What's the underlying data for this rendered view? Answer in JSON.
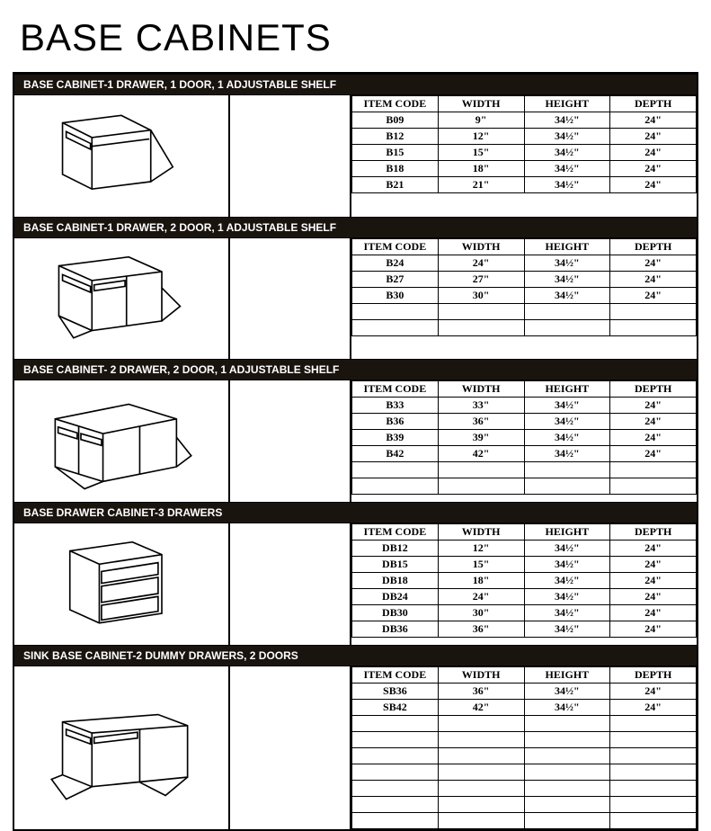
{
  "page_title": "BASE CABINETS",
  "colors": {
    "header_bg": "#1a140f",
    "header_fg": "#ffffff",
    "border": "#000000",
    "page_bg": "#ffffff"
  },
  "columns": [
    "ITEM CODE",
    "WIDTH",
    "HEIGHT",
    "DEPTH"
  ],
  "sections": [
    {
      "title": "BASE CABINET-1 DRAWER, 1 DOOR, 1 ADJUSTABLE SHELF",
      "min_rows": 5,
      "rows": [
        {
          "code": "B09",
          "width": "9\"",
          "height": "34½\"",
          "depth": "24\""
        },
        {
          "code": "B12",
          "width": "12\"",
          "height": "34½\"",
          "depth": "24\""
        },
        {
          "code": "B15",
          "width": "15\"",
          "height": "34½\"",
          "depth": "24\""
        },
        {
          "code": "B18",
          "width": "18\"",
          "height": "34½\"",
          "depth": "24\""
        },
        {
          "code": "B21",
          "width": "21\"",
          "height": "34½\"",
          "depth": "24\""
        }
      ]
    },
    {
      "title": "BASE CABINET-1 DRAWER, 2 DOOR, 1 ADJUSTABLE SHELF",
      "min_rows": 5,
      "rows": [
        {
          "code": "B24",
          "width": "24\"",
          "height": "34½\"",
          "depth": "24\""
        },
        {
          "code": "B27",
          "width": "27\"",
          "height": "34½\"",
          "depth": "24\""
        },
        {
          "code": "B30",
          "width": "30\"",
          "height": "34½\"",
          "depth": "24\""
        }
      ]
    },
    {
      "title": "BASE CABINET- 2 DRAWER, 2 DOOR, 1 ADJUSTABLE SHELF",
      "min_rows": 6,
      "rows": [
        {
          "code": "B33",
          "width": "33\"",
          "height": "34½\"",
          "depth": "24\""
        },
        {
          "code": "B36",
          "width": "36\"",
          "height": "34½\"",
          "depth": "24\""
        },
        {
          "code": "B39",
          "width": "39\"",
          "height": "34½\"",
          "depth": "24\""
        },
        {
          "code": "B42",
          "width": "42\"",
          "height": "34½\"",
          "depth": "24\""
        }
      ]
    },
    {
      "title": "BASE DRAWER CABINET-3 DRAWERS",
      "min_rows": 6,
      "rows": [
        {
          "code": "DB12",
          "width": "12\"",
          "height": "34½\"",
          "depth": "24\""
        },
        {
          "code": "DB15",
          "width": "15\"",
          "height": "34½\"",
          "depth": "24\""
        },
        {
          "code": "DB18",
          "width": "18\"",
          "height": "34½\"",
          "depth": "24\""
        },
        {
          "code": "DB24",
          "width": "24\"",
          "height": "34½\"",
          "depth": "24\""
        },
        {
          "code": "DB30",
          "width": "30\"",
          "height": "34½\"",
          "depth": "24\""
        },
        {
          "code": "DB36",
          "width": "36\"",
          "height": "34½\"",
          "depth": "24\""
        }
      ]
    },
    {
      "title": "SINK BASE CABINET-2 DUMMY DRAWERS, 2 DOORS",
      "min_rows": 9,
      "rows": [
        {
          "code": "SB36",
          "width": "36\"",
          "height": "34½\"",
          "depth": "24\""
        },
        {
          "code": "SB42",
          "width": "42\"",
          "height": "34½\"",
          "depth": "24\""
        }
      ]
    }
  ]
}
